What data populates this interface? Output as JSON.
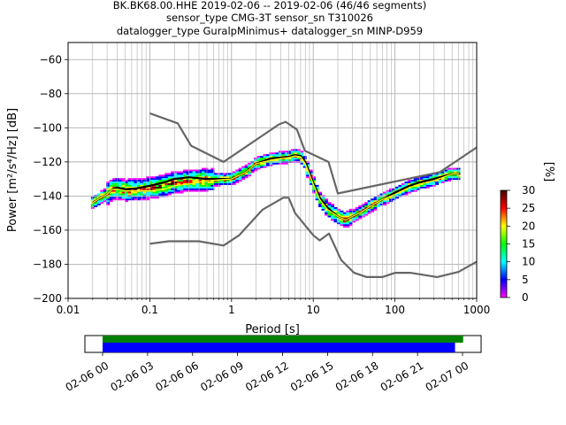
{
  "title": {
    "line1": "BK.BK68.00.HHE   2019-02-06 -- 2019-02-06  (46/46 segments)",
    "line2": "sensor_type CMG-3T sensor_sn T310026",
    "line3": "datalogger_type GuralpMinimus+ datalogger_sn MINP-D959"
  },
  "colors": {
    "model_curves": "#666666",
    "mean_curve": "#000000",
    "mode_curve": "#ffff00",
    "timeline_full": "#008000",
    "timeline_segments": "#0000ff"
  },
  "chart_data": [
    {
      "type": "heatmap",
      "title": "",
      "xlabel": "Period [s]",
      "ylabel": "Power [m²/s⁴/Hz] [dB]",
      "xscale": "log",
      "xlim": [
        0.01,
        1000
      ],
      "ylim": [
        -200,
        -50
      ],
      "grid": true,
      "x_ticks": [
        0.01,
        0.1,
        1,
        10,
        100,
        1000
      ],
      "x_tick_labels": [
        "0.01",
        "0.1",
        "1",
        "10",
        "100",
        "1000"
      ],
      "y_ticks": [
        -200,
        -180,
        -160,
        -140,
        -120,
        -100,
        -80,
        -60
      ],
      "y_tick_labels": [
        "−200",
        "−180",
        "−160",
        "−140",
        "−120",
        "−100",
        "−80",
        "−60"
      ],
      "colorbar": {
        "label": "[%]",
        "min": 0,
        "max": 30,
        "ticks": [
          0,
          5,
          10,
          15,
          20,
          25,
          30
        ],
        "tick_labels": [
          "0",
          "5",
          "10",
          "15",
          "20",
          "25",
          "30"
        ],
        "colormap": [
          "#ffffff",
          "#ff00ff",
          "#0000ff",
          "#00ffff",
          "#00ff00",
          "#ffff00",
          "#ff0000",
          "#400000"
        ]
      },
      "series": [
        {
          "role": "high-noise-model",
          "color": "#666666",
          "x": [
            0.1,
            0.22,
            0.32,
            0.8,
            3.8,
            4.6,
            6.3,
            7.9,
            15.4,
            20,
            354.8,
            1000
          ],
          "y": [
            -91.5,
            -97.4,
            -110.5,
            -120,
            -98,
            -96.5,
            -101,
            -113.5,
            -120,
            -138.5,
            -126,
            -111.5
          ]
        },
        {
          "role": "low-noise-model",
          "color": "#666666",
          "x": [
            0.1,
            0.17,
            0.4,
            0.8,
            1.24,
            2.4,
            4.3,
            5,
            6,
            10,
            12,
            15.6,
            21.9,
            31.6,
            45,
            70,
            101,
            154,
            328,
            600,
            1000
          ],
          "y": [
            -168,
            -166.5,
            -166.5,
            -169,
            -163,
            -148,
            -141,
            -141,
            -150,
            -163,
            -166,
            -162,
            -177.5,
            -185,
            -187.5,
            -187.5,
            -185,
            -185,
            -187.5,
            -184.5,
            -178.5
          ]
        },
        {
          "role": "mean",
          "color": "#000000",
          "x": [
            0.02,
            0.025,
            0.03,
            0.035,
            0.04,
            0.05,
            0.07,
            0.1,
            0.15,
            0.2,
            0.3,
            0.5,
            1,
            1.5,
            2,
            3,
            4,
            5,
            6,
            7,
            8,
            10,
            12,
            15,
            20,
            25,
            30,
            40,
            50,
            70,
            100,
            150,
            200,
            300,
            500,
            600
          ],
          "y": [
            -144,
            -141,
            -139,
            -136,
            -135,
            -136,
            -135.5,
            -134,
            -132,
            -130,
            -129,
            -130,
            -130,
            -126,
            -121,
            -118,
            -117.5,
            -117,
            -116,
            -116.5,
            -120,
            -132,
            -141,
            -147,
            -152,
            -154,
            -152,
            -149,
            -146,
            -142,
            -138,
            -134,
            -132,
            -130,
            -127,
            -127
          ]
        },
        {
          "role": "mode",
          "color": "#ffff00",
          "x": [
            0.02,
            0.025,
            0.03,
            0.035,
            0.04,
            0.05,
            0.07,
            0.1,
            0.15,
            0.2,
            0.3,
            0.5,
            1,
            1.5,
            2,
            3,
            4,
            5,
            6,
            7,
            8,
            10,
            12,
            15,
            20,
            25,
            30,
            40,
            50,
            70,
            100,
            150,
            200,
            300,
            500,
            600
          ],
          "y": [
            -144,
            -141,
            -139,
            -136,
            -136,
            -137,
            -137,
            -137,
            -136,
            -134,
            -133,
            -131,
            -130,
            -126,
            -121,
            -119,
            -118,
            -117.5,
            -116.5,
            -117,
            -121,
            -133,
            -142,
            -148,
            -152,
            -154,
            -152,
            -149,
            -146,
            -142,
            -139,
            -135,
            -133,
            -131,
            -127,
            -127
          ]
        }
      ]
    },
    {
      "type": "bar",
      "title": "",
      "xlabel": "",
      "ylabel": "",
      "x_tick_labels": [
        "02-06 00",
        "02-06 03",
        "02-06 06",
        "02-06 09",
        "02-06 12",
        "02-06 15",
        "02-06 18",
        "02-06 21",
        "02-07 00"
      ],
      "series": [
        {
          "role": "data-coverage",
          "color": "#008000",
          "start_hour": 0,
          "end_hour": 24.04
        },
        {
          "role": "psd-segments",
          "color": "#0000ff",
          "start_hour": 0,
          "end_hour": 23.5
        }
      ]
    }
  ]
}
